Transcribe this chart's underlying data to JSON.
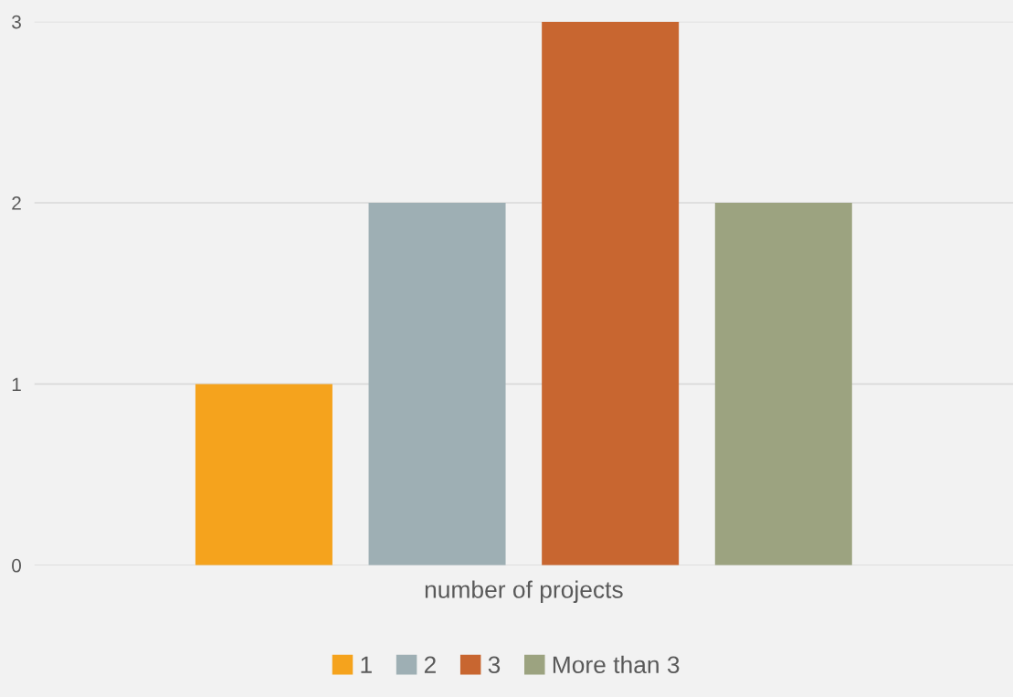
{
  "chart_data": {
    "type": "bar",
    "categories": [
      "number of projects"
    ],
    "series": [
      {
        "name": "1",
        "color": "#f5a31d",
        "values": [
          1
        ]
      },
      {
        "name": "2",
        "color": "#9eafb4",
        "values": [
          2
        ]
      },
      {
        "name": "3",
        "color": "#c86630",
        "values": [
          3
        ]
      },
      {
        "name": "More than 3",
        "color": "#9ca380",
        "values": [
          2
        ]
      }
    ],
    "ylim": [
      0,
      3
    ],
    "yticks": [
      0,
      1,
      2,
      3
    ],
    "grid": "y",
    "legend": "bottom"
  }
}
